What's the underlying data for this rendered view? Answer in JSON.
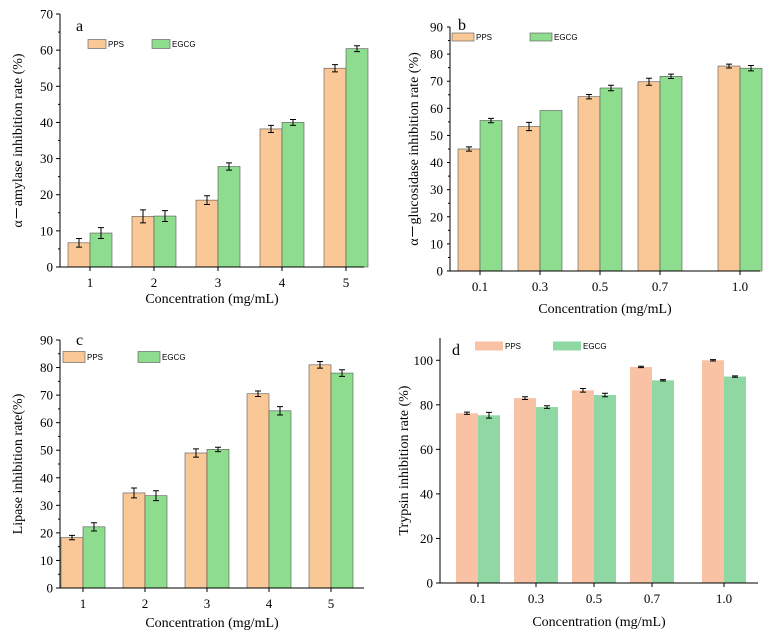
{
  "colors": {
    "pps": "#f9c896",
    "egcg": "#8edc8e",
    "pps_d": "#f9c2a4",
    "egcg_d": "#8fd8a4",
    "axis": "#000000"
  },
  "chart_data": [
    {
      "id": "a",
      "type": "bar",
      "label": "a",
      "categories": [
        "1",
        "2",
        "3",
        "4",
        "5"
      ],
      "series": [
        {
          "name": "PPS",
          "values": [
            6.7,
            14.0,
            18.5,
            38.2,
            55.0
          ],
          "errors": [
            1.2,
            1.8,
            1.2,
            1.0,
            1.0
          ]
        },
        {
          "name": "EGCG",
          "values": [
            9.4,
            14.1,
            27.8,
            40.0,
            60.4
          ],
          "errors": [
            1.5,
            1.5,
            1.0,
            0.8,
            0.8
          ]
        }
      ],
      "xlabel": "Concentration (mg/mL)",
      "ylabel": "α－amylase inhibition rate  (%)",
      "ylim": [
        0,
        70
      ],
      "yticks": [
        0,
        10,
        20,
        30,
        40,
        50,
        60,
        70
      ]
    },
    {
      "id": "b",
      "type": "bar",
      "label": "b",
      "categories": [
        "0.1",
        "0.3",
        "0.5",
        "0.7",
        "1.0"
      ],
      "series": [
        {
          "name": "PPS",
          "values": [
            45.0,
            53.3,
            64.3,
            69.8,
            75.6
          ],
          "errors": [
            0.8,
            1.5,
            0.8,
            1.3,
            0.7
          ]
        },
        {
          "name": "EGCG",
          "values": [
            55.5,
            59.2,
            67.5,
            71.8,
            74.8
          ],
          "errors": [
            0.8,
            0.0,
            1.0,
            0.8,
            1.0
          ]
        }
      ],
      "xlabel": "Concentration (mg/mL)",
      "ylabel": "α－glucosidase inhibition rate  (%)",
      "ylim": [
        0,
        90
      ],
      "yticks": [
        0,
        10,
        20,
        30,
        40,
        50,
        60,
        70,
        80,
        90
      ]
    },
    {
      "id": "c",
      "type": "bar",
      "label": "c",
      "categories": [
        "1",
        "2",
        "3",
        "4",
        "5"
      ],
      "series": [
        {
          "name": "PPS",
          "values": [
            18.3,
            34.5,
            49.0,
            70.5,
            81.0
          ],
          "errors": [
            0.8,
            1.8,
            1.5,
            1.0,
            1.2
          ]
        },
        {
          "name": "EGCG",
          "values": [
            22.2,
            33.5,
            50.3,
            64.3,
            78.0
          ],
          "errors": [
            1.5,
            1.8,
            0.8,
            1.5,
            1.2
          ]
        }
      ],
      "xlabel": "Concentration (mg/mL)",
      "ylabel": "Lipase inhibition rate(%)",
      "ylim": [
        0,
        90
      ],
      "yticks": [
        0,
        10,
        20,
        30,
        40,
        50,
        60,
        70,
        80,
        90
      ]
    },
    {
      "id": "d",
      "type": "bar",
      "label": "d",
      "categories": [
        "0.1",
        "0.3",
        "0.5",
        "0.7",
        "1.0"
      ],
      "series": [
        {
          "name": "PPS",
          "values": [
            76.2,
            83.0,
            86.5,
            97.0,
            100.0
          ],
          "errors": [
            0.5,
            0.6,
            0.8,
            0.3,
            0.3
          ]
        },
        {
          "name": "EGCG",
          "values": [
            75.3,
            79.0,
            84.4,
            91.0,
            92.7
          ],
          "errors": [
            1.3,
            0.6,
            0.8,
            0.3,
            0.3
          ]
        }
      ],
      "xlabel": "Concentration (mg/mL)",
      "ylabel": "Trypsin inhibition rate (%)",
      "ylim": [
        0,
        110
      ],
      "yticks": [
        0,
        20,
        40,
        60,
        80,
        100
      ]
    }
  ]
}
